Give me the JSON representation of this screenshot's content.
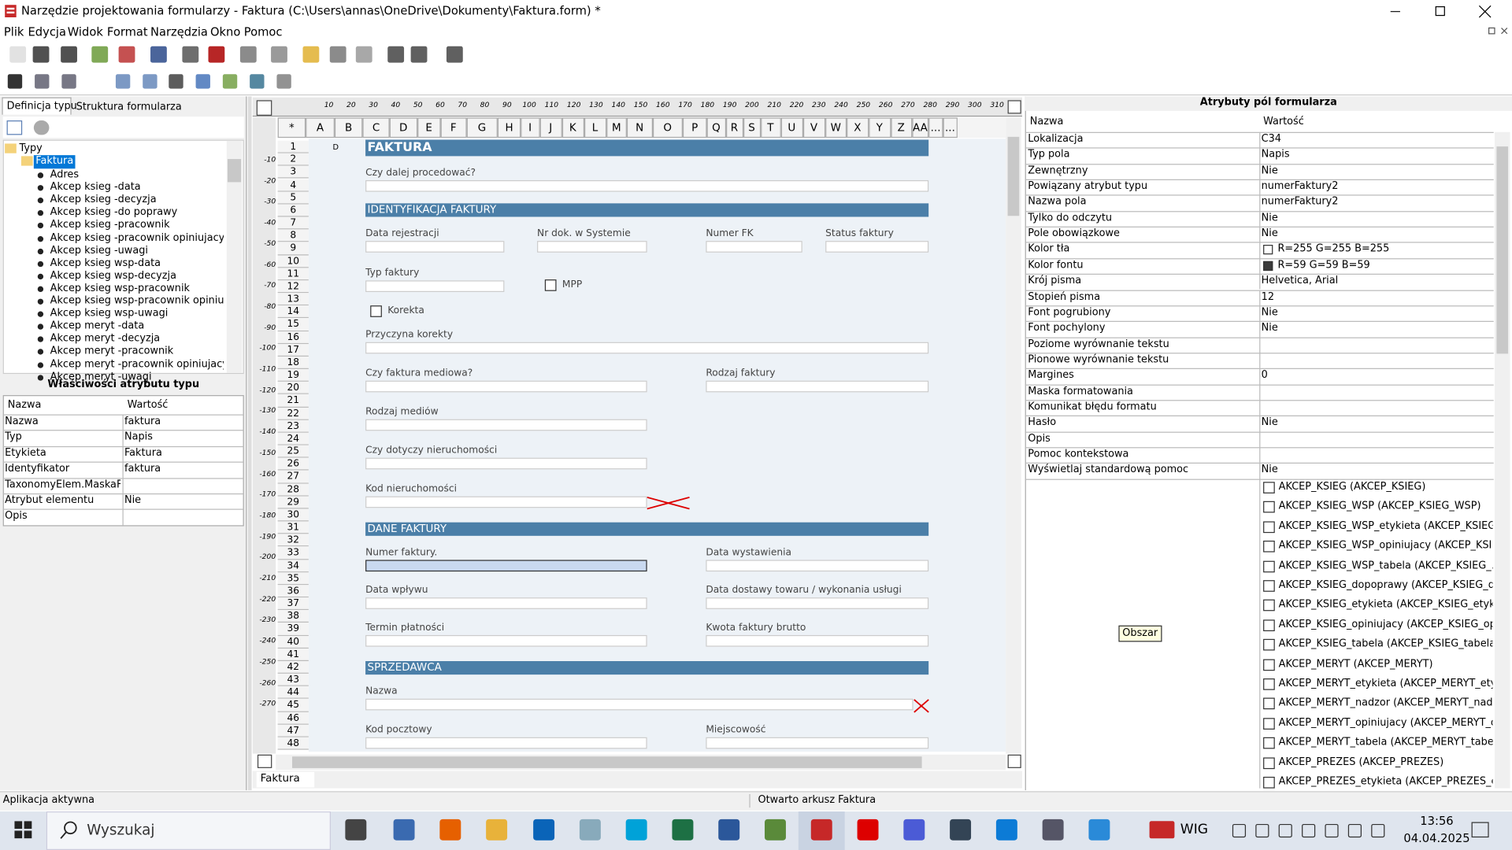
{
  "window": {
    "title": "Narzędzie projektowania formularzy - Faktura (C:\\Users\\annas\\OneDrive\\Dokumenty\\Faktura.form) *",
    "menu": [
      "Plik",
      "Edycja",
      "Widok",
      "Format",
      "Narzędzia",
      "Okno",
      "Pomoc"
    ]
  },
  "left_panel": {
    "tabs": [
      "Definicja typu",
      "Struktura formularza"
    ],
    "tree": {
      "root": "Typy",
      "selected": "Faktura",
      "items": [
        "Adres",
        "Akcep ksieg -data",
        "Akcep ksieg -decyzja",
        "Akcep ksieg -do poprawy",
        "Akcep ksieg -pracownik",
        "Akcep ksieg -pracownik opiniujacy",
        "Akcep ksieg -uwagi",
        "Akcep ksieg wsp-data",
        "Akcep ksieg wsp-decyzja",
        "Akcep ksieg wsp-pracownik",
        "Akcep ksieg wsp-pracownik opiniujacy",
        "Akcep ksieg wsp-uwagi",
        "Akcep meryt -data",
        "Akcep meryt -decyzja",
        "Akcep meryt -pracownik",
        "Akcep meryt -pracownik opiniujacy",
        "Akcep meryt -uwagi"
      ]
    },
    "properties": {
      "title": "Właściwości atrybutu typu",
      "columns": [
        "Nazwa",
        "Wartość"
      ],
      "rows": [
        [
          "Nazwa",
          "faktura"
        ],
        [
          "Typ",
          "Napis"
        ],
        [
          "Etykieta",
          "Faktura"
        ],
        [
          "Identyfikator",
          "faktura"
        ],
        [
          "TaxonomyElem.MaskaF...",
          null
        ],
        [
          "Atrybut elementu",
          "Nie"
        ],
        [
          "Opis",
          null
        ]
      ]
    }
  },
  "sheet": {
    "ruler_top": [
      10,
      20,
      30,
      40,
      50,
      60,
      70,
      80,
      90,
      100,
      110,
      120,
      130,
      140,
      150,
      160,
      170,
      180,
      190,
      200,
      210,
      220,
      230,
      240,
      250,
      260,
      270,
      280,
      290,
      300,
      310
    ],
    "ruler_left": [
      -10,
      -20,
      -30,
      -40,
      -50,
      -60,
      -70,
      -80,
      -90,
      -100,
      -110,
      -120,
      -130,
      -140,
      -150,
      -160,
      -170,
      -180,
      -190,
      -200,
      -210,
      -220,
      -230,
      -240,
      -250,
      -260,
      -270
    ],
    "columns": [
      "*",
      "A",
      "B",
      "C",
      "D",
      "E",
      "F",
      "G",
      "H",
      "I",
      "J",
      "K",
      "L",
      "M",
      "N",
      "O",
      "P",
      "Q",
      "R",
      "S",
      "T",
      "U",
      "V",
      "W",
      "X",
      "Y",
      "Z",
      "AA",
      "...",
      "..."
    ],
    "rows": [
      1,
      2,
      3,
      4,
      5,
      6,
      7,
      8,
      9,
      10,
      11,
      12,
      13,
      14,
      15,
      16,
      17,
      18,
      19,
      20,
      21,
      22,
      23,
      24,
      25,
      26,
      27,
      28,
      29,
      30,
      31,
      32,
      33,
      34,
      35,
      36,
      37,
      38,
      39,
      40,
      41,
      42,
      43,
      44,
      45,
      46,
      47,
      48
    ],
    "cell_marker": "D",
    "form": {
      "title": "FAKTURA",
      "sections": [
        "IDENTYFIKACJA FAKTURY",
        "DANE FAKTURY",
        "SPRZEDAWCA"
      ],
      "fields": [
        "Czy dalej procedować?",
        "Data rejestracji",
        "Nr dok. w Systemie",
        "Numer FK",
        "Status faktury",
        "Typ faktury",
        "Przyczyna korekty",
        "Czy faktura mediowa?",
        "Rodzaj faktury",
        "Rodzaj mediów",
        "Czy dotyczy nieruchomości",
        "Kod nieruchomości",
        "Numer faktury.",
        "Data wystawienia",
        "Data wpływu",
        "Data dostawy towaru / wykonania usługi",
        "Termin płatności",
        "Kwota faktury brutto",
        "Nazwa",
        "Kod pocztowy",
        "Miejscowość"
      ],
      "checkboxes": [
        "MPP",
        "Korekta"
      ]
    },
    "tab": "Faktura"
  },
  "right_panel": {
    "title": "Atrybuty pól formularza",
    "columns": [
      "Nazwa",
      "Wartość"
    ],
    "rows": [
      [
        "Lokalizacja",
        "C34"
      ],
      [
        "Typ pola",
        "Napis"
      ],
      [
        "Zewnętrzny",
        "Nie"
      ],
      [
        "Powiązany atrybut typu",
        "numerFaktury2"
      ],
      [
        "Nazwa pola",
        "numerFaktury2"
      ],
      [
        "Tylko do odczytu",
        "Nie"
      ],
      [
        "Pole obowiązkowe",
        "Nie"
      ],
      [
        "Kolor tła",
        "R=255 G=255 B=255"
      ],
      [
        "Kolor fontu",
        "R=59 G=59 B=59"
      ],
      [
        "Krój pisma",
        "Helvetica, Arial"
      ],
      [
        "Stopień pisma",
        "12"
      ],
      [
        "Font pogrubiony",
        "Nie"
      ],
      [
        "Font pochylony",
        "Nie"
      ],
      [
        "Poziome wyrównanie tekstu",
        null
      ],
      [
        "Pionowe wyrównanie tekstu",
        null
      ],
      [
        "Margines",
        "0"
      ],
      [
        "Maska formatowania",
        null
      ],
      [
        "Komunikat błędu formatu",
        null
      ],
      [
        "Hasło",
        "Nie"
      ],
      [
        "Opis",
        null
      ],
      [
        "Pomoc kontekstowa",
        null
      ],
      [
        "Wyświetlaj standardową pomoc",
        "Nie"
      ]
    ],
    "swatches": {
      "7": "#ffffff",
      "8": "#3b3b3b"
    },
    "area_label": "Obszar",
    "areas": [
      "AKCEP_KSIEG (AKCEP_KSIEG)",
      "AKCEP_KSIEG_WSP (AKCEP_KSIEG_WSP)",
      "AKCEP_KSIEG_WSP_etykieta (AKCEP_KSIEG...",
      "AKCEP_KSIEG_WSP_opiniujacy (AKCEP_KSIE...",
      "AKCEP_KSIEG_WSP_tabela (AKCEP_KSIEG_...",
      "AKCEP_KSIEG_dopoprawy (AKCEP_KSIEG_d...",
      "AKCEP_KSIEG_etykieta (AKCEP_KSIEG_etyki...",
      "AKCEP_KSIEG_opiniujacy (AKCEP_KSIEG_opi...",
      "AKCEP_KSIEG_tabela (AKCEP_KSIEG_tabela)",
      "AKCEP_MERYT (AKCEP_MERYT)",
      "AKCEP_MERYT_etykieta (AKCEP_MERYT_ety...",
      "AKCEP_MERYT_nadzor (AKCEP_MERYT_nad...",
      "AKCEP_MERYT_opiniujacy (AKCEP_MERYT_o...",
      "AKCEP_MERYT_tabela (AKCEP_MERYT_tabela)",
      "AKCEP_PREZES (AKCEP_PREZES)",
      "AKCEP_PREZES_etykieta (AKCEP_PREZES_et..."
    ]
  },
  "status": [
    "Aplikacja aktywna",
    "Otwarto arkusz Faktura"
  ],
  "taskbar": {
    "search": "Wyszukaj",
    "ticker": "WIG",
    "time": "13:56",
    "date": "04.04.2025"
  }
}
